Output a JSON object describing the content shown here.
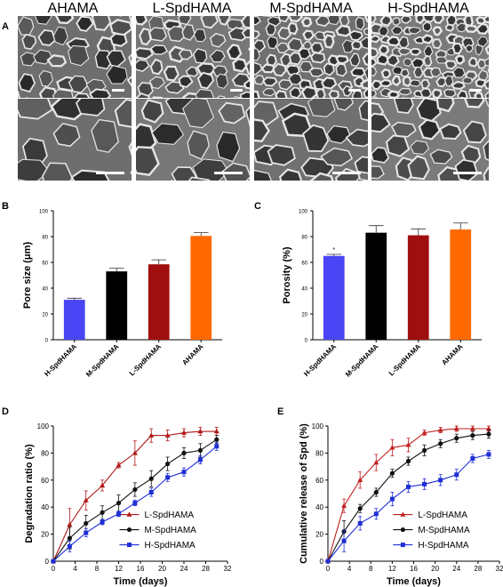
{
  "panels": {
    "a": "A",
    "b": "B",
    "c": "C",
    "d": "D",
    "e": "E"
  },
  "sem": {
    "titles": [
      "AHAMA",
      "L-SpdHAMA",
      "M-SpdHAMA",
      "H-SpdHAMA"
    ]
  },
  "chart_data": [
    {
      "id": "B",
      "type": "bar",
      "ylabel": "Pore size (μm)",
      "categories": [
        "H-SpdHAMA",
        "M-SpdHAMA",
        "L-SpdHAMA",
        "AHAMA"
      ],
      "values": [
        31,
        53,
        58.5,
        80.5
      ],
      "errors": [
        1.2,
        2.5,
        3.5,
        2.5
      ],
      "colors": [
        "#4a46f5",
        "#000000",
        "#a00f0f",
        "#ff6a00"
      ],
      "ylim": [
        0,
        100
      ],
      "yticks": [
        0,
        20,
        40,
        60,
        80,
        100
      ]
    },
    {
      "id": "C",
      "type": "bar",
      "ylabel": "Porosity (%)",
      "categories": [
        "H-SpdHAMA",
        "M-SpdHAMA",
        "L-SpdHAMA",
        "AHAMA"
      ],
      "values": [
        65,
        83,
        81,
        85.5
      ],
      "errors": [
        1.2,
        5.5,
        5,
        5
      ],
      "colors": [
        "#4a46f5",
        "#000000",
        "#a00f0f",
        "#ff6a00"
      ],
      "annotation": "*",
      "ylim": [
        0,
        100
      ],
      "yticks": [
        0,
        20,
        40,
        60,
        80,
        100
      ]
    },
    {
      "id": "D",
      "type": "line",
      "xlabel": "Time (days)",
      "ylabel": "Degradation ratio (%)",
      "xlim": [
        0,
        32
      ],
      "ylim": [
        0,
        100
      ],
      "xticks": [
        0,
        4,
        8,
        12,
        16,
        20,
        24,
        28,
        32
      ],
      "yticks": [
        0,
        20,
        40,
        60,
        80,
        100
      ],
      "legend_position": "bottom-right",
      "series": [
        {
          "name": "L-SpdHAMA",
          "color": "#b01818",
          "marker": "triangle",
          "x": [
            0,
            3,
            6,
            9,
            12,
            15,
            18,
            21,
            24,
            27,
            30
          ],
          "y": [
            0,
            27,
            45,
            56,
            71,
            80,
            93,
            93,
            95,
            96,
            96
          ],
          "err": [
            0,
            12,
            7,
            4,
            2,
            9,
            5,
            4,
            3,
            3,
            3
          ]
        },
        {
          "name": "M-SpdHAMA",
          "color": "#111111",
          "marker": "circle",
          "x": [
            0,
            3,
            6,
            9,
            12,
            15,
            18,
            21,
            24,
            27,
            30
          ],
          "y": [
            0,
            17,
            28,
            36,
            43,
            53,
            61,
            72,
            80,
            82,
            90
          ],
          "err": [
            0,
            8,
            6,
            5,
            6,
            5,
            6,
            5,
            4,
            5,
            3
          ]
        },
        {
          "name": "H-SpdHAMA",
          "color": "#1f2fd6",
          "marker": "square",
          "x": [
            0,
            3,
            6,
            9,
            12,
            15,
            18,
            21,
            24,
            27,
            30
          ],
          "y": [
            0,
            11,
            21,
            29,
            35,
            43,
            51,
            62,
            66,
            75,
            85
          ],
          "err": [
            0,
            4,
            3,
            2,
            2,
            2,
            3,
            3,
            3,
            3,
            3
          ]
        }
      ]
    },
    {
      "id": "E",
      "type": "line",
      "xlabel": "Time (days)",
      "ylabel": "Cumulative release of Spd (%)",
      "xlim": [
        0,
        32
      ],
      "ylim": [
        0,
        100
      ],
      "xticks": [
        0,
        4,
        8,
        12,
        16,
        20,
        24,
        28,
        32
      ],
      "yticks": [
        0,
        20,
        40,
        60,
        80,
        100
      ],
      "legend_position": "bottom-right",
      "series": [
        {
          "name": "L-SpdHAMA",
          "color": "#c02020",
          "marker": "triangle",
          "x": [
            0,
            3,
            6,
            9,
            12,
            15,
            18,
            21,
            24,
            27,
            30
          ],
          "y": [
            0,
            41,
            60,
            73,
            84,
            86,
            95,
            97,
            98,
            98,
            98
          ],
          "err": [
            0,
            5,
            6,
            6,
            6,
            5,
            2,
            2,
            2,
            2,
            2
          ]
        },
        {
          "name": "M-SpdHAMA",
          "color": "#111111",
          "marker": "circle",
          "x": [
            0,
            3,
            6,
            9,
            12,
            15,
            18,
            21,
            24,
            27,
            30
          ],
          "y": [
            0,
            22,
            39,
            51,
            65,
            74,
            82,
            87,
            91,
            93,
            94
          ],
          "err": [
            0,
            8,
            3,
            3,
            3,
            3,
            4,
            3,
            3,
            3,
            3
          ]
        },
        {
          "name": "H-SpdHAMA",
          "color": "#1f2fd6",
          "marker": "square",
          "x": [
            0,
            3,
            6,
            9,
            12,
            15,
            18,
            21,
            24,
            27,
            30
          ],
          "y": [
            0,
            15,
            28,
            35,
            46,
            55,
            57,
            60,
            64,
            76,
            79
          ],
          "err": [
            0,
            8,
            5,
            4,
            5,
            4,
            4,
            4,
            4,
            3,
            3
          ]
        }
      ]
    }
  ]
}
